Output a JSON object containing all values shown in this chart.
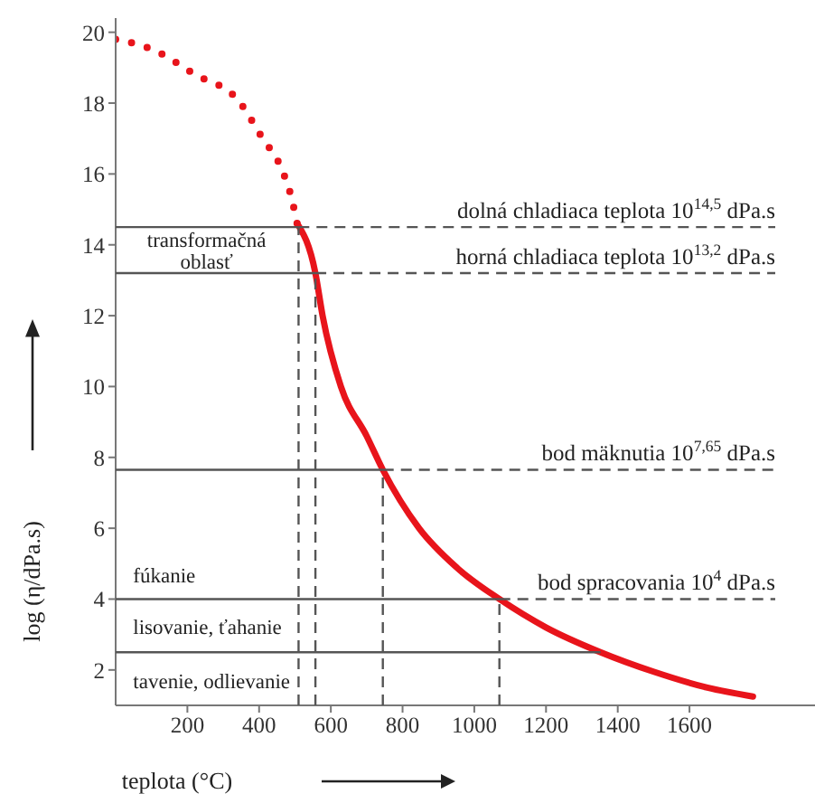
{
  "chart_data": {
    "type": "line",
    "xlabel": "teplota (°C)",
    "ylabel": "log (η/dPa.s)",
    "xlim": [
      0,
      1950
    ],
    "xticks": [
      200,
      400,
      600,
      800,
      1000,
      1200,
      1400,
      1600
    ],
    "ylim": [
      1,
      20.4
    ],
    "yticks": [
      2,
      4,
      6,
      8,
      10,
      12,
      14,
      16,
      18,
      20
    ],
    "marker": "none",
    "series": [
      {
        "color": "#e8141b",
        "line_style": "dotted",
        "x": [
          0,
          106,
          223,
          340,
          410,
          460,
          491,
          506
        ],
        "values": [
          19.8,
          19.5,
          18.8,
          18.1,
          17.0,
          16.2,
          15.3,
          14.6
        ]
      },
      {
        "color": "#e8141b",
        "line_style": "solid",
        "x": [
          506,
          557,
          577,
          628,
          700,
          745,
          846,
          950,
          1070,
          1200,
          1352,
          1500,
          1650,
          1777
        ],
        "values": [
          14.6,
          13.2,
          12,
          10,
          8.6,
          7.65,
          6,
          4.9,
          4,
          3.2,
          2.5,
          1.95,
          1.5,
          1.25
        ]
      }
    ],
    "ref_lines": [
      {
        "axis": "y",
        "value": 14.5,
        "color": "#555555",
        "line_style": "solid"
      },
      {
        "axis": "y",
        "value": 13.2,
        "color": "#555555",
        "line_style": "solid"
      },
      {
        "axis": "y",
        "value": 7.65,
        "color": "#555555",
        "line_style": "solid"
      },
      {
        "axis": "y",
        "value": 4,
        "color": "#555555",
        "line_style": "solid"
      },
      {
        "axis": "y",
        "value": 2.5,
        "color": "#555555",
        "line_style": "solid"
      },
      {
        "axis": "y",
        "value": 14.5,
        "label": "dolná chladiaca teplota 10$^{14,5}$ dPa.s",
        "color": "#555555",
        "line_style": "dashed"
      },
      {
        "axis": "y",
        "value": 13.2,
        "label": "horná chladiaca teplota 10$^{13,2}$ dPa.s",
        "color": "#555555",
        "line_style": "dashed"
      },
      {
        "axis": "y",
        "value": 7.65,
        "label": "bod mäknutia 10$^{7,65}$ dPa.s",
        "color": "#555555",
        "line_style": "dashed"
      },
      {
        "axis": "y",
        "value": 4,
        "label": "bod spracovania 10$^{4}$ dPa.s",
        "color": "#555555",
        "line_style": "dashed"
      },
      {
        "axis": "x",
        "value": 510,
        "color": "#555555",
        "line_style": "dashed"
      },
      {
        "axis": "x",
        "value": 557,
        "color": "#555555",
        "line_style": "dashed"
      },
      {
        "axis": "x",
        "value": 745,
        "color": "#555555",
        "line_style": "dashed"
      },
      {
        "axis": "x",
        "value": 1070,
        "color": "#555555",
        "line_style": "dashed"
      }
    ],
    "annotations": [
      "transformačná oblasť",
      "fúkanie",
      "lisovanie, ťahanie",
      "tavenie, odlievanie"
    ]
  }
}
